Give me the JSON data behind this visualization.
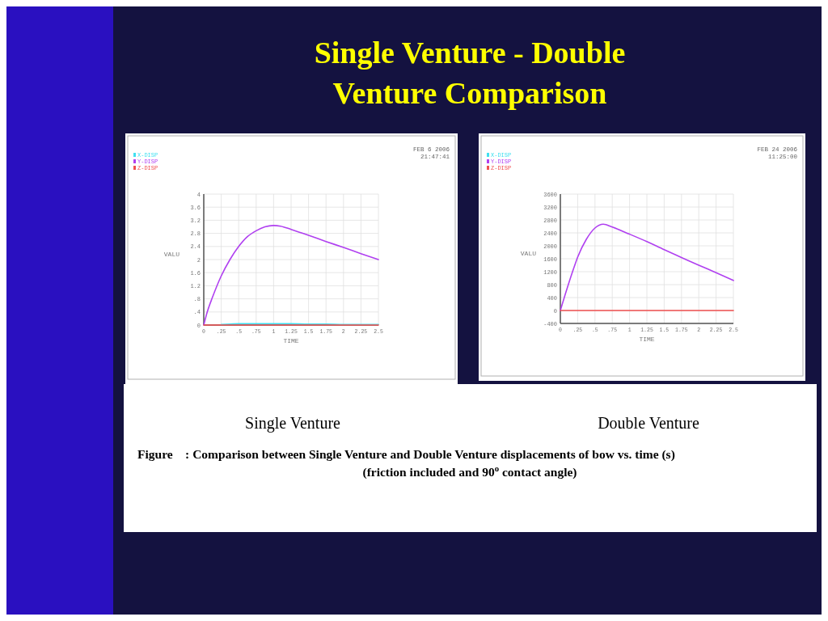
{
  "chart_data": [
    {
      "type": "line",
      "title": "Single Venture - Double Venture Comparison",
      "subtitle": "Single Venture",
      "xlabel": "TIME",
      "ylabel": "VALU",
      "x": [
        0,
        0.05,
        0.125,
        0.25,
        0.375,
        0.5,
        0.625,
        0.75,
        0.875,
        1,
        1.1,
        1.25,
        1.5,
        1.75,
        2,
        2.25,
        2.5
      ],
      "series": [
        {
          "name": "X-DISP",
          "color": "#40e0f0",
          "values": [
            null,
            null,
            null,
            0.02,
            0.03,
            0.04,
            0.04,
            0.04,
            0.04,
            0.04,
            0.04,
            0.04,
            0.03,
            0.03,
            0.02,
            0.02,
            0.02
          ]
        },
        {
          "name": "Y-DISP",
          "color": "#b040f0",
          "values": [
            0,
            0.4,
            0.85,
            1.5,
            2.0,
            2.4,
            2.7,
            2.88,
            3.0,
            3.04,
            3.02,
            2.92,
            2.74,
            2.55,
            2.37,
            2.18,
            2.0
          ]
        },
        {
          "name": "Z-DISP",
          "color": "#f05050",
          "values": [
            0,
            0,
            0,
            0,
            0,
            0,
            0,
            0,
            0,
            0,
            0,
            0,
            0,
            0,
            0,
            0,
            0
          ]
        }
      ],
      "xlim": [
        0,
        2.5
      ],
      "ylim": [
        0,
        4
      ],
      "xticks": [
        0,
        {
          "value": 0.25,
          "label": ".25"
        },
        {
          "value": 0.5,
          "label": ".5"
        },
        {
          "value": 0.75,
          "label": ".75"
        },
        1,
        1.25,
        1.5,
        1.75,
        2,
        2.25,
        2.5
      ],
      "yticks": [
        0,
        {
          "value": 0.4,
          "label": ".4"
        },
        {
          "value": 0.8,
          "label": ".8"
        },
        1.2,
        1.6,
        2,
        2.4,
        2.8,
        3.2,
        3.6,
        4
      ],
      "grid": true,
      "legend": "top left",
      "annotations": [
        "FEB 6 2006",
        "21:47:41",
        "Figure    : Comparison between Single Venture and Double Venture displacements of bow vs. time (s)",
        "(friction included and 90$^{o}$ contact angle)"
      ]
    },
    {
      "type": "line",
      "subtitle": "Double Venture",
      "xlabel": "TIME",
      "ylabel": "VALU",
      "x": [
        0,
        0.1,
        0.2,
        0.25,
        0.375,
        0.5,
        0.62,
        0.75,
        1,
        1.25,
        1.5,
        1.75,
        2,
        2.25,
        2.5
      ],
      "series": [
        {
          "name": "X-DISP",
          "color": "#40e0f0",
          "values": [
            null,
            null,
            null,
            null,
            null,
            null,
            null,
            null,
            null,
            null,
            null,
            null,
            null,
            null,
            null
          ]
        },
        {
          "name": "Y-DISP",
          "color": "#b040f0",
          "values": [
            0,
            700,
            1350,
            1650,
            2200,
            2550,
            2670,
            2580,
            2360,
            2130,
            1880,
            1640,
            1400,
            1170,
            930
          ]
        },
        {
          "name": "Z-DISP",
          "color": "#f05050",
          "values": [
            0,
            0,
            0,
            0,
            0,
            0,
            0,
            0,
            0,
            0,
            0,
            0,
            0,
            0,
            0
          ]
        }
      ],
      "xlim": [
        0,
        2.5
      ],
      "ylim": [
        -400,
        3600
      ],
      "xticks": [
        0,
        {
          "value": 0.25,
          "label": ".25"
        },
        {
          "value": 0.5,
          "label": ".5"
        },
        {
          "value": 0.75,
          "label": ".75"
        },
        1,
        1.25,
        1.5,
        1.75,
        2,
        2.25,
        2.5
      ],
      "yticks": [
        -400,
        0,
        400,
        800,
        1200,
        1600,
        2000,
        2400,
        2800,
        3200,
        3600
      ],
      "grid": true,
      "legend": "top left",
      "annotations": [
        "FEB 24 2006",
        "11:25:00"
      ]
    }
  ]
}
